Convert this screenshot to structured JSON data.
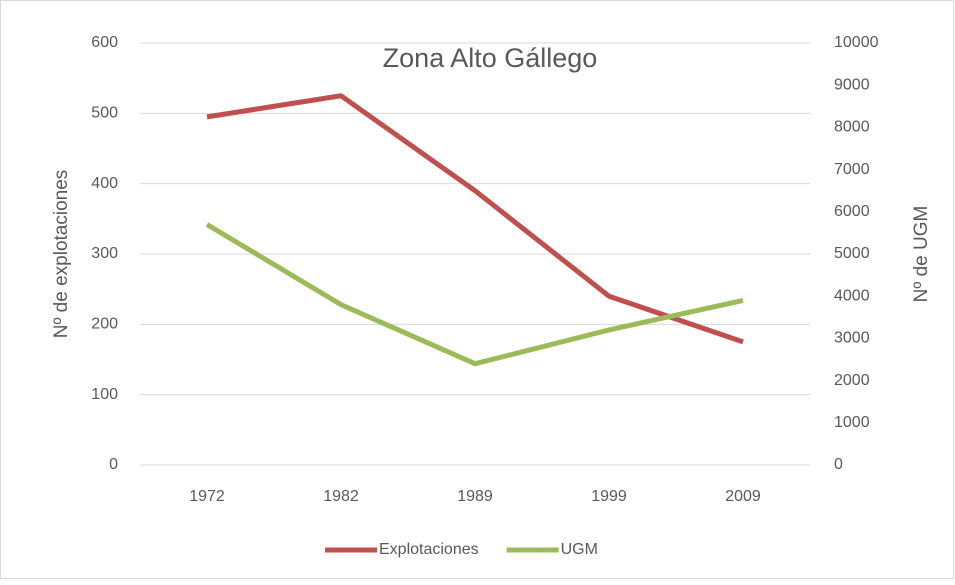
{
  "chart_data": {
    "type": "line",
    "title": "Zona Alto Gállego",
    "y_label": "Nº de explotaciones",
    "y2_label": "Nº de UGM",
    "categories": [
      "1972",
      "1982",
      "1989",
      "1999",
      "2009"
    ],
    "series": [
      {
        "name": "Explotaciones",
        "color": "#c0504d",
        "values": [
          495,
          525,
          390,
          240,
          175
        ]
      },
      {
        "name": "UGM",
        "color": "#9bbb59",
        "axis": "y2",
        "values": [
          5700,
          3800,
          2400,
          3200,
          3900
        ]
      }
    ],
    "ylim": [
      0,
      600
    ],
    "yticks": [
      0,
      100,
      200,
      300,
      400,
      500,
      600
    ],
    "y2lim": [
      0,
      10000
    ],
    "y2ticks": [
      0,
      1000,
      2000,
      3000,
      4000,
      5000,
      6000,
      7000,
      8000,
      9000,
      10000
    ],
    "grid": true,
    "legend": "bottom"
  }
}
